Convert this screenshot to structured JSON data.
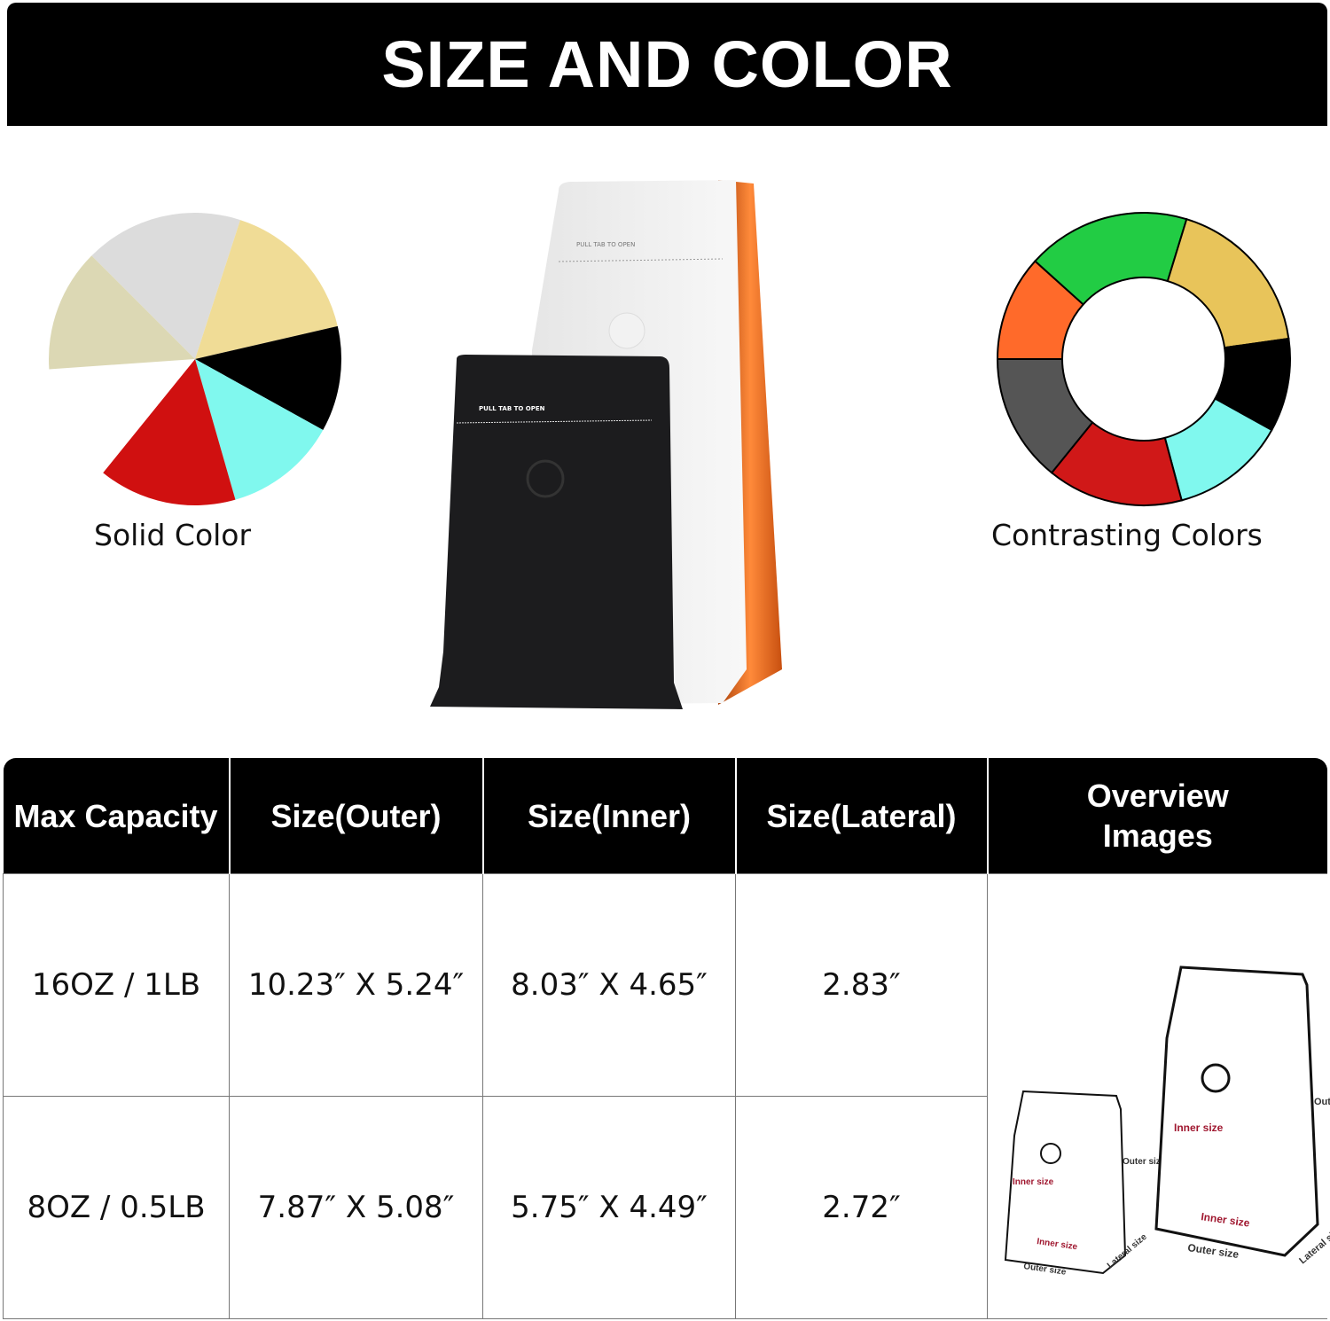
{
  "banner": {
    "title": "SIZE AND COLOR"
  },
  "solid": {
    "label": "Solid Color",
    "colors": [
      "#dcdcdc",
      "#f0dc96",
      "#000000",
      "#80f8ee",
      "#d01010",
      "#ffffff",
      "#dcd8b4"
    ]
  },
  "contrast": {
    "label": "Contrasting Colors",
    "colors": [
      "#22cc44",
      "#e8c45a",
      "#000000",
      "#80f8ee",
      "#d01818",
      "#555555",
      "#ff6a2a"
    ]
  },
  "product": {
    "zipper_text": "PULL TAB TO OPEN"
  },
  "table": {
    "headers": [
      "Max Capacity",
      "Size(Outer)",
      "Size(Inner)",
      "Size(Lateral)",
      "Overview Images"
    ],
    "rows": [
      [
        "16OZ / 1LB",
        "10.23″  X 5.24″",
        "8.03″  X 4.65″",
        "2.83″"
      ],
      [
        "8OZ / 0.5LB",
        "7.87″  X 5.08″",
        "5.75″  X 4.49″",
        "2.72″"
      ]
    ],
    "overview": {
      "outer": "Outer size",
      "inner": "Inner size",
      "lateral": "Lateral size"
    }
  }
}
